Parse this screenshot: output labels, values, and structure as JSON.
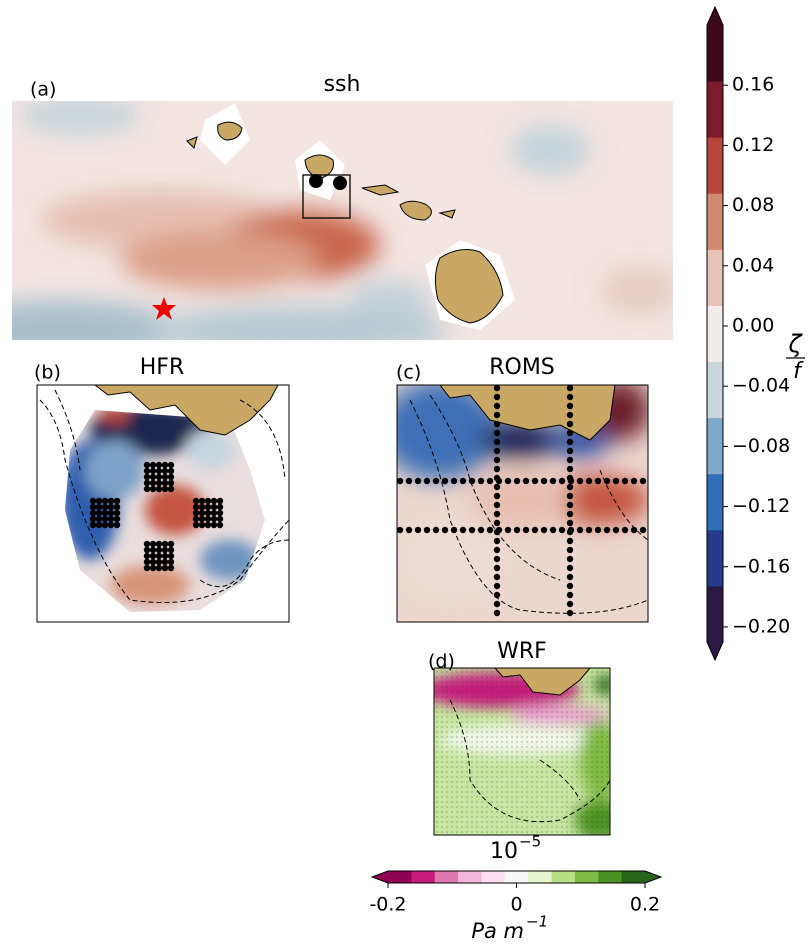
{
  "chart_data": {
    "type": "map",
    "panels": [
      {
        "label": "(a)",
        "title": "ssh"
      },
      {
        "label": "(b)",
        "title": "HFR"
      },
      {
        "label": "(c)",
        "title": "ROMS"
      },
      {
        "label": "(d)",
        "title": "WRF"
      }
    ],
    "colorbars": [
      {
        "orientation": "vertical",
        "label_numerator": "ζ",
        "label_denominator": "f",
        "ylim": [
          -0.21,
          0.2
        ],
        "yticks": [
          0.16,
          0.12,
          0.08,
          0.04,
          {
            "value": 0,
            "label": "0.00"
          },
          {
            "value": -0.04,
            "label": "−0.04"
          },
          {
            "value": -0.08,
            "label": "−0.08"
          },
          {
            "value": -0.12,
            "label": "−0.12"
          },
          {
            "value": -0.16,
            "label": "−0.16"
          },
          {
            "value": -0.2,
            "label": "−0.20"
          }
        ],
        "colors": [
          "#2b1a45",
          "#253a8a",
          "#2f6fb8",
          "#7fa8c9",
          "#c9d6dc",
          "#f1ecea",
          "#e6c3b6",
          "#d08a70",
          "#b6463c",
          "#7e1a2e",
          "#3c0a1c"
        ]
      },
      {
        "orientation": "horizontal",
        "multiplier_base": "10",
        "multiplier_exponent": "−5",
        "unit": "Pa m",
        "unit_exponent": "−1",
        "xlim": [
          -0.2,
          0.2
        ],
        "xticks": [
          -0.2,
          0,
          0.2
        ],
        "colors": [
          "#8e0152",
          "#c51b7d",
          "#de77ae",
          "#f1b6da",
          "#fde0ef",
          "#f7f7f7",
          "#e6f5d0",
          "#b8e186",
          "#7fbc41",
          "#4d9221",
          "#276419"
        ]
      }
    ]
  }
}
